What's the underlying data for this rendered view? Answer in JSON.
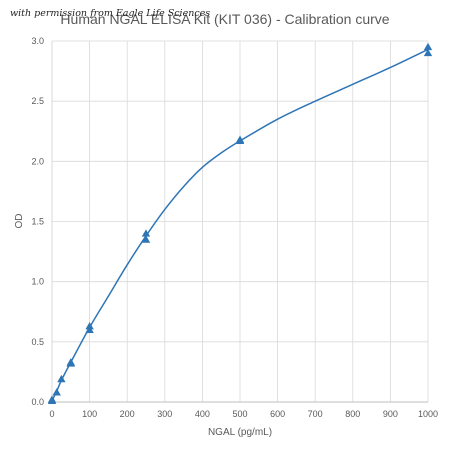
{
  "watermark": "with permission from Eagle Life Sciences",
  "chart_data": {
    "type": "scatter",
    "title": "Human NGAL ELISA Kit (KIT 036) - Calibration curve",
    "xlabel": "NGAL (pg/mL)",
    "ylabel": "OD",
    "xlim": [
      0,
      1000
    ],
    "ylim": [
      0,
      3.0
    ],
    "x_ticks": [
      "0",
      "100",
      "200",
      "300",
      "400",
      "500",
      "600",
      "700",
      "800",
      "900",
      "1000"
    ],
    "y_ticks": [
      "0.0",
      "0.5",
      "1.0",
      "1.5",
      "2.0",
      "2.5",
      "3.0"
    ],
    "grid": true,
    "legend": false,
    "series": [
      {
        "marker": "triangle",
        "color": "#2e75b6",
        "x": [
          0,
          0,
          12.5,
          25,
          50,
          50,
          100,
          100,
          250,
          250,
          500,
          500,
          1000,
          1000
        ],
        "y": [
          0.01,
          0.02,
          0.08,
          0.19,
          0.32,
          0.33,
          0.6,
          0.63,
          1.35,
          1.4,
          2.17,
          2.18,
          2.9,
          2.95
        ]
      }
    ],
    "fit_curve": {
      "color": "#2e75b6",
      "x": [
        0,
        12.5,
        25,
        50,
        100,
        150,
        200,
        250,
        300,
        350,
        400,
        450,
        500,
        600,
        700,
        800,
        900,
        1000
      ],
      "y": [
        0.01,
        0.09,
        0.18,
        0.33,
        0.62,
        0.88,
        1.14,
        1.38,
        1.6,
        1.79,
        1.95,
        2.07,
        2.17,
        2.35,
        2.5,
        2.64,
        2.78,
        2.93
      ]
    }
  }
}
